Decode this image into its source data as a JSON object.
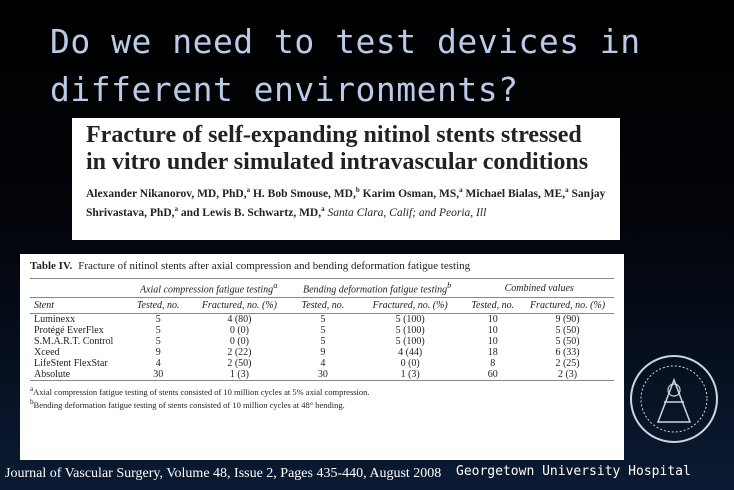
{
  "title": "Do we need to test devices in different environments?",
  "article": {
    "title": "Fracture of self-expanding nitinol stents stressed in vitro under simulated intravascular conditions",
    "authors": [
      {
        "name": "Alexander Nikanorov, MD, PhD,",
        "sup": "a"
      },
      {
        "name": "H. Bob Smouse, MD,",
        "sup": "b"
      },
      {
        "name": "Karim Osman, MS,",
        "sup": "a"
      },
      {
        "name": "Michael Bialas, ME,",
        "sup": "a"
      },
      {
        "name": "Sanjay Shrivastava, PhD,",
        "sup": "a"
      },
      {
        "name": "and Lewis B. Schwartz, MD,",
        "sup": "a"
      }
    ],
    "affiliation": "Santa Clara, Calif; and Peoria, Ill"
  },
  "table": {
    "label": "Table IV.",
    "caption": "Fracture of nitinol stents after axial compression and bending deformation fatigue testing",
    "groups": [
      {
        "text": "Axial compression fatigue testing",
        "sup": "a"
      },
      {
        "text": "Bending deformation fatigue testing",
        "sup": "b"
      },
      {
        "text": "Combined values",
        "sup": null
      }
    ],
    "columns": [
      "Stent",
      "Tested, no.",
      "Fractured, no. (%)",
      "Tested, no.",
      "Fractured, no. (%)",
      "Tested, no.",
      "Fractured, no. (%)"
    ],
    "rows": [
      [
        "Luminexx",
        5,
        "4 (80)",
        5,
        "5 (100)",
        10,
        "9 (90)"
      ],
      [
        "Protégé EverFlex",
        5,
        "0 (0)",
        5,
        "5 (100)",
        10,
        "5 (50)"
      ],
      [
        "S.M.A.R.T. Control",
        5,
        "0 (0)",
        5,
        "5 (100)",
        10,
        "5 (50)"
      ],
      [
        "Xceed",
        9,
        "2 (22)",
        9,
        "4 (44)",
        18,
        "6 (33)"
      ],
      [
        "LifeStent FlexStar",
        4,
        "2 (50)",
        4,
        "0 (0)",
        8,
        "2 (25)"
      ],
      [
        "Absolute",
        30,
        "1 (3)",
        30,
        "1 (3)",
        60,
        "2 (3)"
      ]
    ],
    "footnotes": [
      {
        "sup": "a",
        "text": "Axial compression fatigue testing of stents consisted of 10 million cycles at 5% axial compression."
      },
      {
        "sup": "b",
        "text": "Bending deformation fatigue testing of stents consisted of 10 million cycles at 48° bending."
      }
    ]
  },
  "footer": {
    "journal": "Journal of Vascular Surgery, Volume 48, Issue 2, Pages 435-440, August 2008",
    "hospital": "Georgetown University Hospital"
  }
}
